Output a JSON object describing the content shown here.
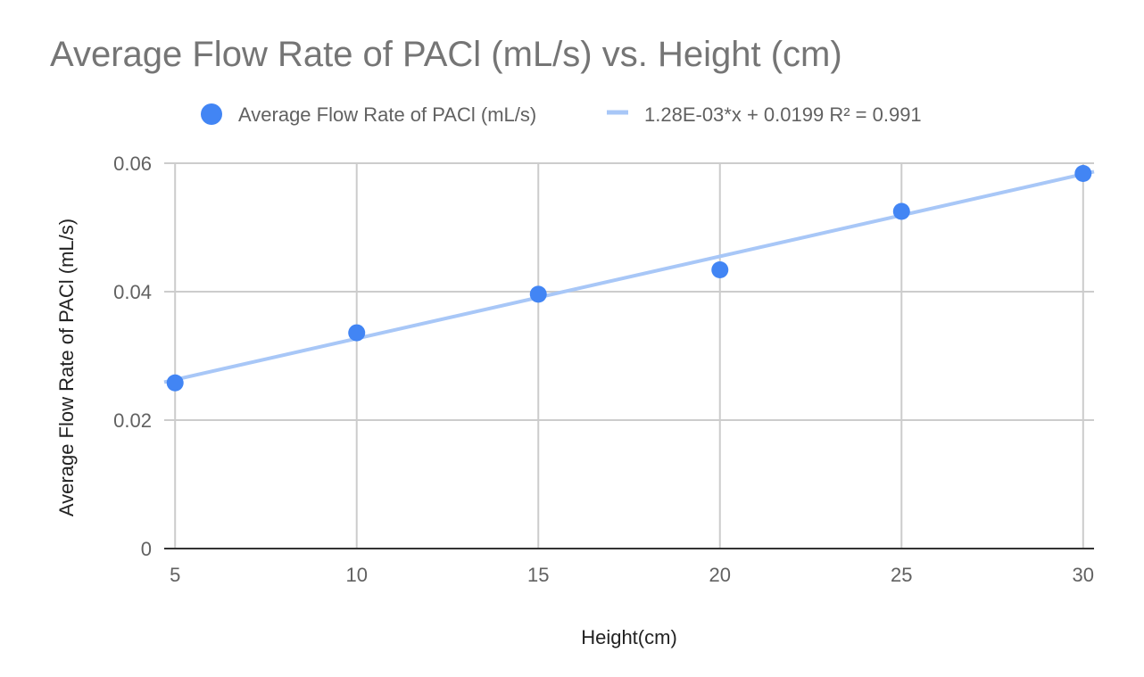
{
  "chart_data": {
    "type": "scatter",
    "title": "Average Flow Rate of PACl (mL/s) vs. Height (cm)",
    "xlabel": "Height(cm)",
    "ylabel": "Average Flow Rate of PACl (mL/s)",
    "xlim": [
      4.7,
      30.3
    ],
    "ylim": [
      0,
      0.06
    ],
    "x_ticks": [
      5,
      10,
      15,
      20,
      25,
      30
    ],
    "y_ticks": [
      0,
      0.02,
      0.04,
      0.06
    ],
    "x_tick_labels": [
      "5",
      "10",
      "15",
      "20",
      "25",
      "30"
    ],
    "y_tick_labels": [
      "0",
      "0.02",
      "0.04",
      "0.06"
    ],
    "grid": true,
    "legend_position": "top",
    "series": [
      {
        "name": "Average Flow Rate of PACl (mL/s)",
        "color": "#4285f4",
        "x": [
          5,
          10,
          15,
          20,
          25,
          30
        ],
        "y": [
          0.0258,
          0.0336,
          0.0396,
          0.0434,
          0.0525,
          0.0584
        ]
      }
    ],
    "trendline": {
      "label": "1.28E-03*x + 0.0199 R² = 0.991",
      "color": "#a8c7f7",
      "slope": 0.00128,
      "intercept": 0.0199,
      "x_range": [
        4.7,
        30.3
      ]
    }
  }
}
